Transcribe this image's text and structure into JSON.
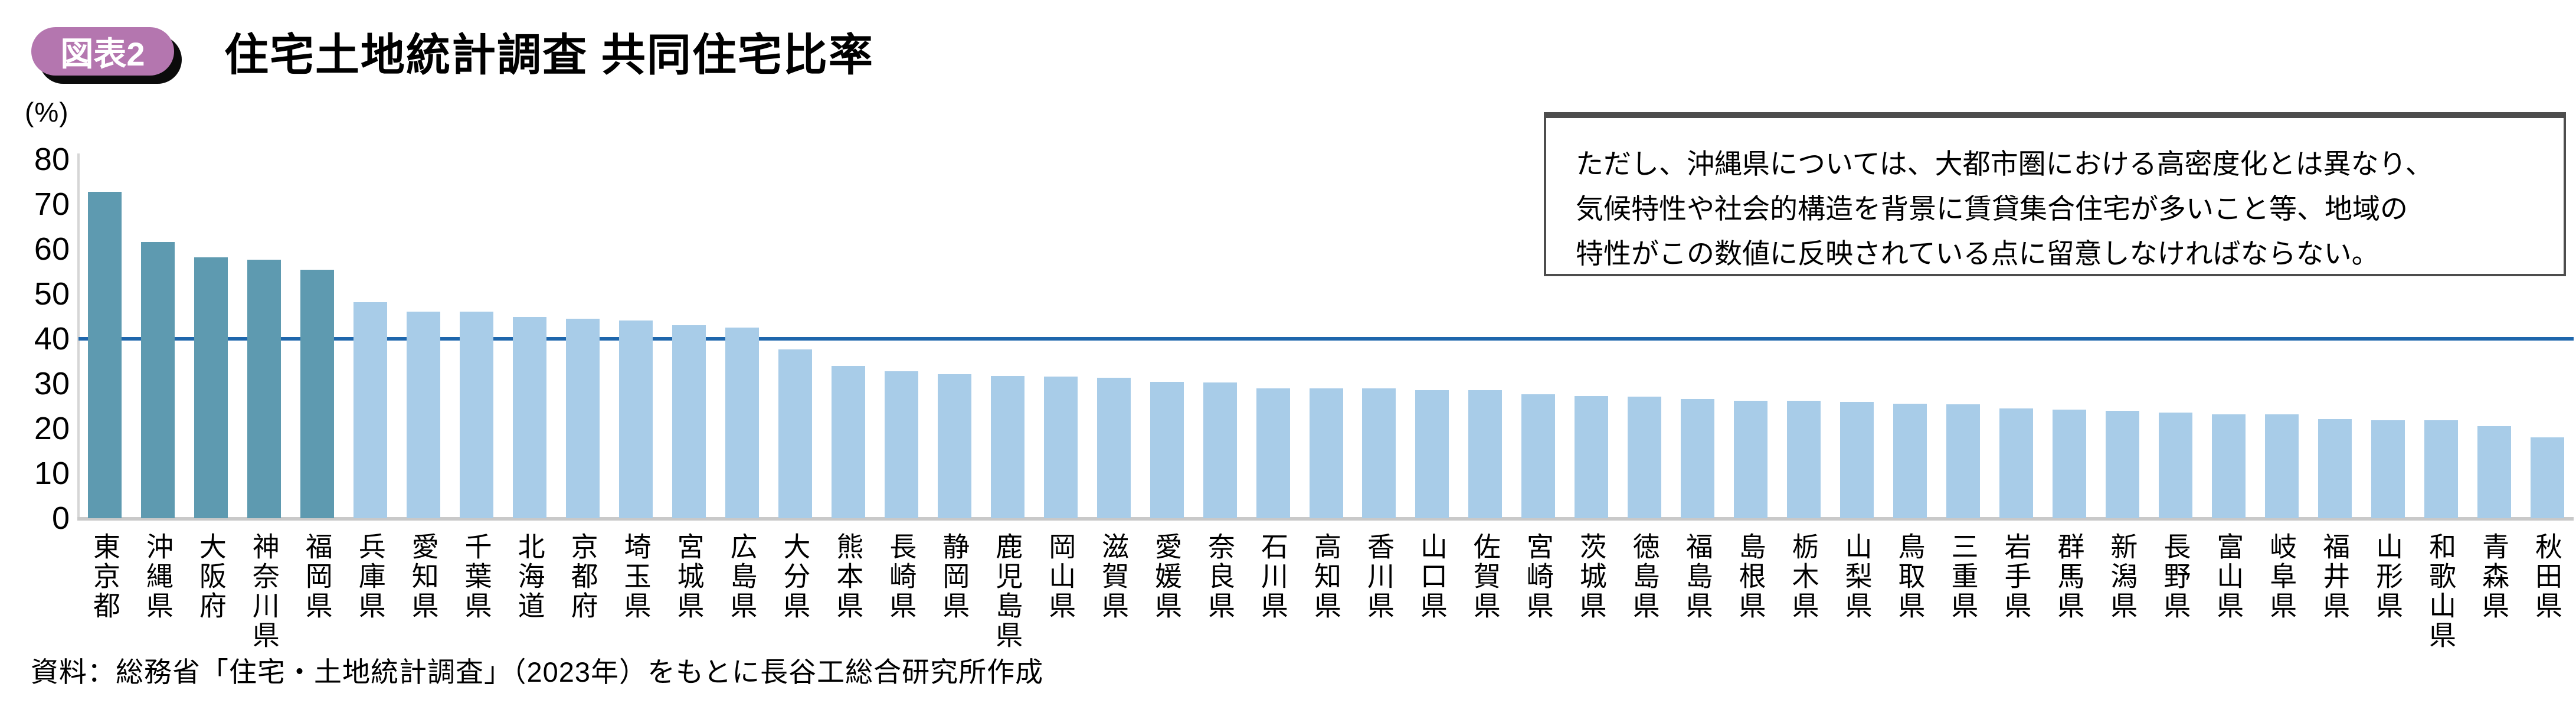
{
  "header": {
    "badge": "図表2",
    "title": "住宅土地統計調査 共同住宅比率",
    "badge_color": "#b476af"
  },
  "chart_data": {
    "type": "bar",
    "title": "住宅土地統計調査 共同住宅比率",
    "unit_label": "(%)",
    "ylabel": "(%)",
    "xlabel": "",
    "ylim": [
      0,
      80
    ],
    "yticks": [
      0,
      10,
      20,
      30,
      40,
      50,
      60,
      70,
      80
    ],
    "grid": false,
    "legend": "none",
    "reference_line_value": 40,
    "highlight_count": 5,
    "colors": {
      "highlight_bar": "#5e9ab0",
      "normal_bar": "#a8cce8",
      "reference_line": "#1e66ac"
    },
    "categories": [
      "東京都",
      "沖縄県",
      "大阪府",
      "神奈川県",
      "福岡県",
      "兵庫県",
      "愛知県",
      "千葉県",
      "北海道",
      "京都府",
      "埼玉県",
      "宮城県",
      "広島県",
      "大分県",
      "熊本県",
      "長崎県",
      "静岡県",
      "鹿児島県",
      "岡山県",
      "滋賀県",
      "愛媛県",
      "奈良県",
      "石川県",
      "高知県",
      "香川県",
      "山口県",
      "佐賀県",
      "宮崎県",
      "茨城県",
      "徳島県",
      "福島県",
      "島根県",
      "栃木県",
      "山梨県",
      "鳥取県",
      "三重県",
      "岩手県",
      "群馬県",
      "新潟県",
      "長野県",
      "富山県",
      "岐阜県",
      "福井県",
      "山形県",
      "和歌山県",
      "青森県",
      "秋田県"
    ],
    "values": [
      72.8,
      61.6,
      58.1,
      57.6,
      55.4,
      48.1,
      46.1,
      46.0,
      44.9,
      44.5,
      44.1,
      43.0,
      42.5,
      37.6,
      33.9,
      32.8,
      32.1,
      31.7,
      31.6,
      31.3,
      30.4,
      30.2,
      29.0,
      29.0,
      28.9,
      28.6,
      28.5,
      27.6,
      27.3,
      27.1,
      26.6,
      26.2,
      26.2,
      25.9,
      25.5,
      25.4,
      24.5,
      24.2,
      23.9,
      23.5,
      23.2,
      23.1,
      22.1,
      21.9,
      21.8,
      20.5,
      18.0
    ]
  },
  "annotation": {
    "lines": [
      "ただし、沖縄県については、大都市圏における高密度化とは異なり、",
      "気候特性や社会的構造を背景に賃貸集合住宅が多いこと等、地域の",
      "特性がこの数値に反映されている点に留意しなければならない。"
    ]
  },
  "source": "資料：総務省「住宅・土地統計調査」（2023年）をもとに長谷工総合研究所作成"
}
